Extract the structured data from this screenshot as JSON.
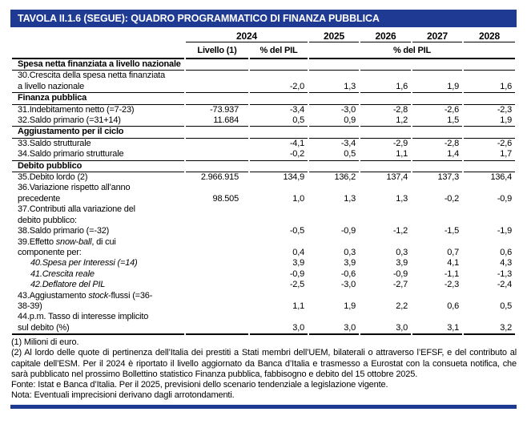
{
  "title": "TAVOLA II.1.6 (SEGUE): QUADRO PROGRAMMATICO DI FINANZA PUBBLICA",
  "accent_color": "#1f3a93",
  "columns": {
    "group_2024": "2024",
    "years": [
      "2025",
      "2026",
      "2027",
      "2028"
    ],
    "sub_livello": "Livello (1)",
    "sub_pct_2024": "% del PIL",
    "sub_pct_years": "% del PIL"
  },
  "rows": [
    {
      "type": "section",
      "label": "Spesa netta finanziata a livello nazionale",
      "bb": true
    },
    {
      "type": "data",
      "label": "30.Crescita della spesa netta finanziata\na livello nazionale",
      "values": [
        "",
        "-2,0",
        "1,3",
        "1,6",
        "1,9",
        "1,6"
      ],
      "bb": true
    },
    {
      "type": "section",
      "label": "Finanza pubblica",
      "bb": true
    },
    {
      "type": "data",
      "label": "31.Indebitamento netto (=7-23)",
      "values": [
        "-73.937",
        "-3,4",
        "-3,0",
        "-2,8",
        "-2,6",
        "-2,3"
      ],
      "bb": false
    },
    {
      "type": "data",
      "label": "32.Saldo primario (=31+14)",
      "values": [
        "11.684",
        "0,5",
        "0,9",
        "1,2",
        "1,5",
        "1,9"
      ],
      "bb": true
    },
    {
      "type": "section",
      "label": "Aggiustamento per il ciclo",
      "bb": true
    },
    {
      "type": "data",
      "label": "33.Saldo strutturale",
      "values": [
        "",
        "-4,1",
        "-3,4",
        "-2,9",
        "-2,8",
        "-2,6"
      ],
      "bb": false
    },
    {
      "type": "data",
      "label": "34.Saldo primario strutturale",
      "values": [
        "",
        "-0,2",
        "0,5",
        "1,1",
        "1,4",
        "1,7"
      ],
      "bb": true
    },
    {
      "type": "section",
      "label": "Debito pubblico",
      "bb": true
    },
    {
      "type": "data",
      "label": "35.Debito lordo (2)",
      "values": [
        "2.966.915",
        "134,9",
        "136,2",
        "137,4",
        "137,3",
        "136,4"
      ],
      "bb": false
    },
    {
      "type": "data",
      "label": "36.Variazione rispetto all’anno\nprecedente",
      "values": [
        "98.505",
        "1,0",
        "1,3",
        "1,3",
        "-0,2",
        "-0,9"
      ],
      "bb": false
    },
    {
      "type": "data",
      "label": "37.Contributi alla variazione del\ndebito pubblico:",
      "values": [
        "",
        "",
        "",
        "",
        "",
        ""
      ],
      "bb": false
    },
    {
      "type": "data",
      "label": "38.Saldo primario (=-32)",
      "values": [
        "",
        "-0,5",
        "-0,9",
        "-1,2",
        "-1,5",
        "-1,9"
      ],
      "bb": false
    },
    {
      "type": "data",
      "label": "39.Effetto *snow-ball*, di cui\ncomponente per:",
      "values": [
        "",
        "0,4",
        "0,3",
        "0,3",
        "0,7",
        "0,6"
      ],
      "bb": false
    },
    {
      "type": "data",
      "label": "*40.Spesa per Interessi (=14)*",
      "indent": true,
      "values": [
        "",
        "3,9",
        "3,9",
        "3,9",
        "4,1",
        "4,3"
      ],
      "bb": false
    },
    {
      "type": "data",
      "label": "*41.Crescita reale*",
      "indent": true,
      "values": [
        "",
        "-0,9",
        "-0,6",
        "-0,9",
        "-1,1",
        "-1,3"
      ],
      "bb": false
    },
    {
      "type": "data",
      "label": "*42.Deflatore del PIL*",
      "indent": true,
      "values": [
        "",
        "-2,5",
        "-3,0",
        "-2,7",
        "-2,3",
        "-2,4"
      ],
      "bb": false
    },
    {
      "type": "data",
      "label": "43.Aggiustamento *stock*-flussi (=36-\n38-39)",
      "values": [
        "",
        "1,1",
        "1,9",
        "2,2",
        "0,6",
        "0,5"
      ],
      "bb": false
    },
    {
      "type": "data",
      "label": "44.p.m. Tasso di interesse implicito\nsul debito (%)",
      "values": [
        "",
        "3,0",
        "3,0",
        "3,0",
        "3,1",
        "3,2"
      ],
      "bb": false,
      "bb2": true
    }
  ],
  "footnotes": [
    {
      "text": "(1) Milioni di euro.",
      "justify": false
    },
    {
      "text": "(2) Al lordo delle quote di pertinenza dell’Italia dei prestiti a Stati membri dell’UEM, bilaterali o attraverso l’EFSF, e del contributo al capitale dell’ESM. Per il 2024 è riportato il livello aggiornato da Banca d’Italia e trasmesso a Eurostat con la consueta notifica, che sarà pubblicato nel prossimo Bollettino statistico Finanza pubblica, fabbisogno e debito del 15 ottobre 2025.",
      "justify": true
    },
    {
      "text": "Fonte: Istat e Banca d’Italia. Per il 2025, previsioni dello scenario tendenziale a legislazione vigente.",
      "justify": false
    },
    {
      "text": "Nota: Eventuali imprecisioni derivano dagli arrotondamenti.",
      "justify": false
    }
  ]
}
